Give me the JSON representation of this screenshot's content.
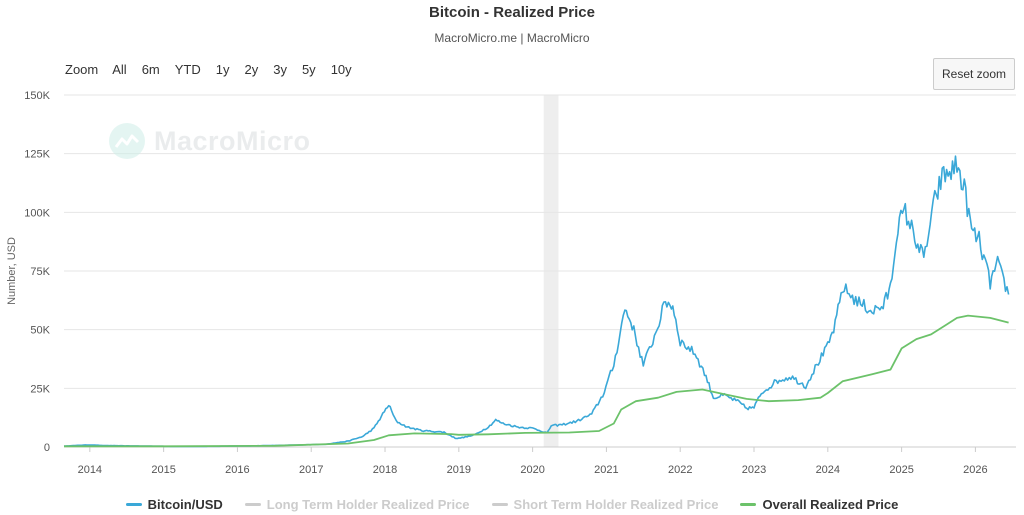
{
  "header": {
    "title": "Bitcoin - Realized Price",
    "subtitle": "MacroMicro.me | MacroMicro"
  },
  "range_selector": {
    "label": "Zoom",
    "buttons": [
      "All",
      "6m",
      "YTD",
      "1y",
      "2y",
      "3y",
      "5y",
      "10y"
    ]
  },
  "reset_button": "Reset zoom",
  "watermark": "MacroMicro",
  "colors": {
    "btc": "#3aa8d8",
    "overall": "#6cc26a",
    "disabled": "#cccccc",
    "grid": "#e6e6e6",
    "shade": "#eeeeee"
  },
  "chart_data": {
    "type": "line",
    "title": "Bitcoin - Realized Price",
    "subtitle": "MacroMicro.me | MacroMicro",
    "ylabel": "Number, USD",
    "ylim": [
      0,
      150000
    ],
    "y_ticks": [
      "0",
      "25K",
      "50K",
      "75K",
      "100K",
      "125K",
      "150K"
    ],
    "x_ticks": [
      "2014",
      "2015",
      "2016",
      "2017",
      "2018",
      "2019",
      "2020",
      "2021",
      "2022",
      "2023",
      "2024",
      "2025",
      "2026"
    ],
    "xlim": [
      2013.65,
      2026.55
    ],
    "shaded_band": [
      2020.15,
      2020.35
    ],
    "series": [
      {
        "name": "Bitcoin/USD",
        "visible": true,
        "x": [
          2013.65,
          2013.9,
          2014.0,
          2014.2,
          2014.5,
          2014.9,
          2015.2,
          2015.6,
          2016.0,
          2016.5,
          2016.9,
          2017.2,
          2017.5,
          2017.7,
          2017.85,
          2017.97,
          2018.05,
          2018.15,
          2018.3,
          2018.5,
          2018.8,
          2018.95,
          2019.0,
          2019.2,
          2019.4,
          2019.5,
          2019.6,
          2019.8,
          2020.0,
          2020.2,
          2020.25,
          2020.4,
          2020.6,
          2020.8,
          2020.95,
          2021.1,
          2021.25,
          2021.35,
          2021.5,
          2021.65,
          2021.8,
          2021.9,
          2022.0,
          2022.2,
          2022.35,
          2022.45,
          2022.6,
          2022.8,
          2022.9,
          2023.0,
          2023.1,
          2023.3,
          2023.5,
          2023.7,
          2023.85,
          2024.0,
          2024.1,
          2024.2,
          2024.4,
          2024.6,
          2024.75,
          2024.85,
          2024.95,
          2025.05,
          2025.2,
          2025.3,
          2025.45,
          2025.55,
          2025.65,
          2025.75,
          2025.85,
          2025.95,
          2026.05,
          2026.2,
          2026.3,
          2026.45
        ],
        "values": [
          400,
          800,
          900,
          600,
          500,
          350,
          250,
          270,
          400,
          650,
          900,
          1200,
          2500,
          4500,
          8000,
          14000,
          18000,
          11000,
          8500,
          7000,
          6300,
          3800,
          3700,
          5000,
          8500,
          11500,
          10000,
          8500,
          8000,
          6000,
          9000,
          9500,
          11000,
          14000,
          22000,
          35000,
          59000,
          52000,
          35000,
          47000,
          62000,
          60000,
          45000,
          40000,
          30000,
          21000,
          22000,
          19000,
          16500,
          16800,
          23000,
          28000,
          30000,
          26000,
          35000,
          43000,
          52000,
          68000,
          62000,
          58000,
          60000,
          68000,
          95000,
          100000,
          88000,
          80000,
          105000,
          115000,
          117000,
          120000,
          110000,
          92000,
          88000,
          70000,
          78000,
          65000
        ]
      },
      {
        "name": "Long Term Holder Realized Price",
        "visible": false
      },
      {
        "name": "Short Term Holder Realized Price",
        "visible": false
      },
      {
        "name": "Overall Realized Price",
        "visible": true,
        "x": [
          2013.65,
          2015.0,
          2016.5,
          2017.5,
          2017.85,
          2018.05,
          2018.4,
          2018.9,
          2019.0,
          2019.4,
          2019.9,
          2020.5,
          2020.9,
          2021.1,
          2021.2,
          2021.4,
          2021.7,
          2021.95,
          2022.3,
          2022.6,
          2022.9,
          2023.2,
          2023.6,
          2023.9,
          2024.0,
          2024.2,
          2024.6,
          2024.85,
          2025.0,
          2025.2,
          2025.4,
          2025.6,
          2025.75,
          2025.9,
          2026.2,
          2026.45
        ],
        "values": [
          300,
          300,
          500,
          1500,
          3000,
          5000,
          5800,
          5500,
          5200,
          5400,
          6000,
          6200,
          6800,
          10000,
          16000,
          19500,
          21000,
          23500,
          24500,
          22500,
          20500,
          19500,
          20000,
          21000,
          23000,
          28000,
          31000,
          33000,
          42000,
          46000,
          48000,
          52000,
          55000,
          56000,
          55000,
          53000
        ]
      }
    ]
  }
}
